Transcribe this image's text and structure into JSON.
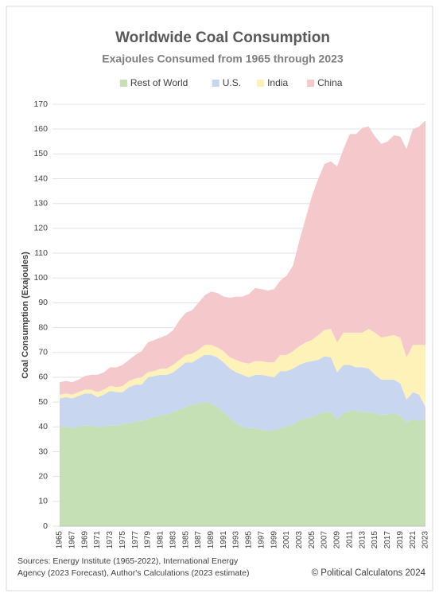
{
  "chart_data": {
    "type": "stacked_area",
    "title": "Worldwide Coal Consumption",
    "subtitle": "Exajoules Consumed from 1965 through 2023",
    "y_label": "Coal Consumption (Exajoules)",
    "categories": [
      "1965",
      null,
      "1967",
      null,
      "1969",
      null,
      "1971",
      null,
      "1973",
      null,
      "1975",
      null,
      "1977",
      null,
      "1979",
      null,
      "1981",
      null,
      "1983",
      null,
      "1985",
      null,
      "1987",
      null,
      "1989",
      null,
      "1991",
      null,
      "1993",
      null,
      "1995",
      null,
      "1997",
      null,
      "1999",
      null,
      "2001",
      null,
      "2003",
      null,
      "2005",
      null,
      "2007",
      null,
      "2009",
      null,
      "2011",
      null,
      "2013",
      null,
      "2015",
      null,
      "2017",
      null,
      "2019",
      null,
      "2021",
      null,
      "2023"
    ],
    "series": [
      {
        "name": "Rest of World",
        "color": "#c5e0b4",
        "values": [
          40,
          40,
          39.5,
          40,
          40.5,
          40.5,
          40,
          40,
          40.5,
          40.5,
          41,
          41.5,
          42,
          42.5,
          43,
          44,
          44.5,
          45,
          46,
          47,
          48,
          49,
          49.5,
          50,
          49.5,
          48,
          46,
          43.5,
          41.5,
          40,
          39.5,
          39.5,
          39,
          38.5,
          38.5,
          39.5,
          40,
          41,
          42.5,
          43.5,
          44,
          45,
          46,
          46,
          43,
          45.5,
          46.5,
          46.5,
          46,
          46,
          45.5,
          45,
          45,
          45.5,
          44.5,
          42,
          43,
          42.5,
          43
        ]
      },
      {
        "name": "U.S.",
        "color": "#c9d6ef",
        "values": [
          11.5,
          12,
          12,
          12.5,
          13,
          13,
          12,
          13,
          14,
          13.5,
          13,
          14.5,
          15,
          14.5,
          17,
          16.5,
          16.5,
          16,
          16,
          17,
          18,
          17,
          18,
          19,
          19.5,
          20,
          20,
          20,
          20.5,
          21,
          20.5,
          21.5,
          22,
          22,
          21.5,
          23,
          22.5,
          22.5,
          22.5,
          22.5,
          22.5,
          22,
          22.5,
          22,
          19,
          19.5,
          18.5,
          17.5,
          18,
          17.5,
          15.5,
          14,
          14,
          13.5,
          13,
          9,
          11,
          10.5,
          5
        ]
      },
      {
        "name": "India",
        "color": "#fff2b8",
        "values": [
          1.5,
          1.5,
          1.5,
          1.5,
          1.5,
          1.5,
          2,
          2,
          2,
          2,
          2.5,
          2.5,
          2.5,
          3,
          2,
          2,
          2.5,
          2.5,
          3,
          3,
          3,
          3.5,
          3.5,
          4,
          4,
          4,
          4.5,
          4.5,
          5,
          5,
          5.5,
          5.5,
          5.5,
          5.5,
          6,
          6.5,
          6.5,
          7,
          7.5,
          8,
          8.5,
          10,
          10.5,
          11.5,
          12,
          13,
          13,
          14,
          14,
          16,
          17,
          17,
          17.5,
          18,
          18.5,
          17,
          19,
          20,
          25
        ]
      },
      {
        "name": "China",
        "color": "#f5c8cb",
        "values": [
          5,
          5,
          5,
          5,
          5.5,
          6,
          7,
          7,
          7.5,
          8,
          8.5,
          8.5,
          9.5,
          10.5,
          12,
          12.5,
          12.5,
          13.5,
          14,
          16,
          17,
          17.5,
          19,
          20,
          21.5,
          22,
          22,
          24,
          25.5,
          26.5,
          28,
          29.5,
          29,
          29,
          29.5,
          30,
          32,
          34.5,
          42.5,
          50,
          58,
          63,
          67,
          67.5,
          71,
          74,
          80,
          80,
          82.5,
          81.5,
          79,
          78,
          78.5,
          80.5,
          81,
          84,
          87,
          88,
          90.5
        ]
      }
    ],
    "ylim": [
      0,
      170
    ],
    "yticks": [
      0,
      10,
      20,
      30,
      40,
      50,
      60,
      70,
      80,
      90,
      100,
      110,
      120,
      130,
      140,
      150,
      160,
      170
    ],
    "grid": true,
    "legend": "top",
    "sources": [
      "Sources: Energy Institute (1965-2022), International Energy",
      "Agency (2023 Forecast), Author's Calculations (2023 estimate)"
    ],
    "credit": "© Political Calculatons 2024"
  }
}
